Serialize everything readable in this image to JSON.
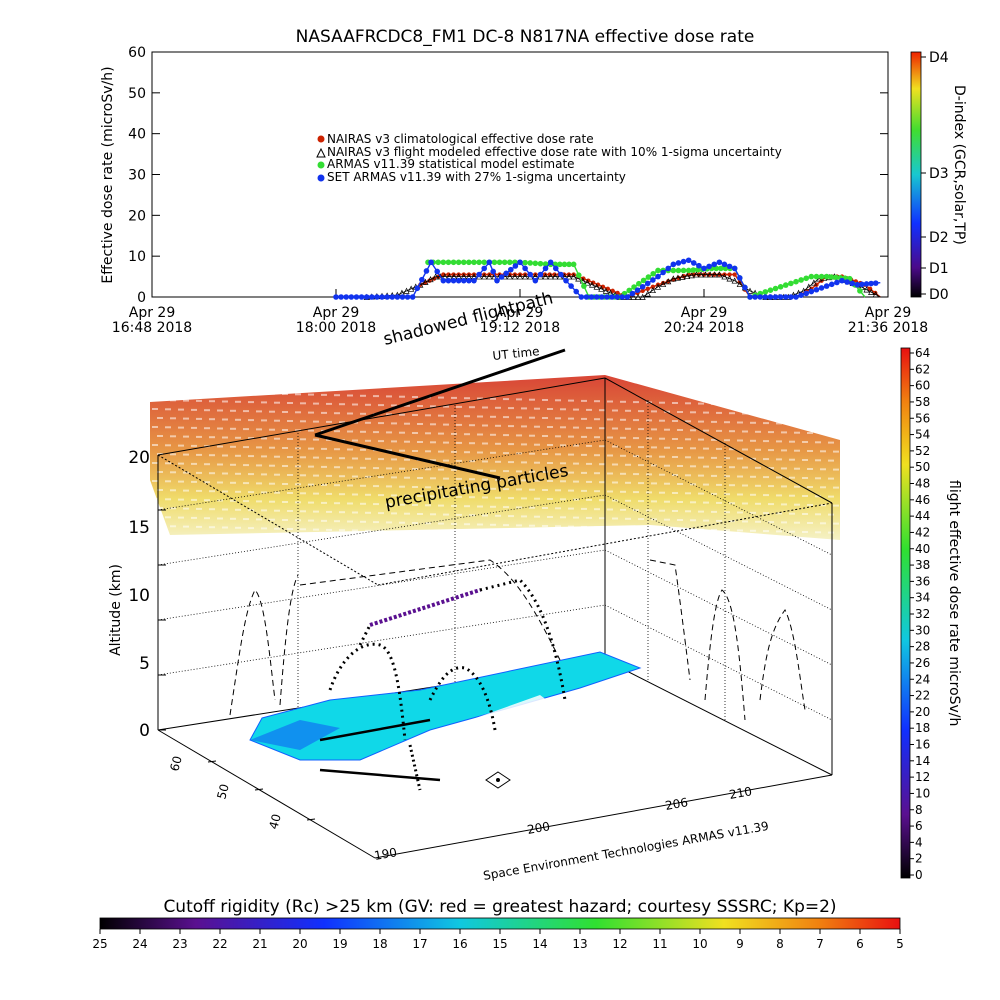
{
  "title": "NASAAFRCDC8_FM1 DC-8    N817NA effective dose rate",
  "colors": {
    "nairas_clim": "#cc2200",
    "nairas_flight": "#000000",
    "armas_stat": "#33dd33",
    "set_armas": "#1133ee"
  },
  "chart_data": [
    {
      "type": "line",
      "ylabel": "Effective dose rate (microSv/h)",
      "ylim": [
        0,
        60
      ],
      "yticks": [
        "0",
        "10",
        "20",
        "30",
        "40",
        "50",
        "60"
      ],
      "xticks": [
        {
          "line1": "Apr 29",
          "line2": "16:48 2018"
        },
        {
          "line1": "Apr 29",
          "line2": "18:00 2018"
        },
        {
          "line1": "Apr 29",
          "line2": "19:12 2018"
        },
        {
          "line1": "Apr 29",
          "line2": "20:24 2018"
        },
        {
          "line1": "Apr 29",
          "line2": "21:36 2018"
        }
      ],
      "xlim_hours": [
        16.8,
        21.6
      ],
      "legend_position": "center",
      "series": [
        {
          "name": "NAIRAS v3 climatological effective dose rate",
          "color_key": "nairas_clim",
          "x_hours": [
            18.55,
            18.7,
            19.0,
            19.3,
            19.55,
            19.9,
            20.1,
            20.3,
            20.5,
            20.6,
            20.7,
            20.8,
            20.9,
            21.0,
            21.1,
            21.2,
            21.3,
            21.45,
            21.55
          ],
          "y": [
            3,
            5.5,
            5.5,
            5.5,
            5.5,
            0,
            3,
            5.5,
            5.5,
            5.5,
            0,
            0,
            0,
            0,
            2,
            5,
            5,
            3,
            0
          ]
        },
        {
          "name": "NAIRAS v3 flight modeled effective dose rate with 10% 1-sigma uncertainty",
          "color_key": "nairas_flight",
          "x_hours": [
            18.2,
            18.4,
            18.55,
            18.65,
            18.8,
            19.0,
            19.2,
            19.4,
            19.55,
            19.7,
            19.85,
            20.0,
            20.1,
            20.2,
            20.35,
            20.5,
            20.6,
            20.7,
            20.8,
            20.95,
            21.05,
            21.15,
            21.25,
            21.4,
            21.55
          ],
          "y": [
            0,
            0.5,
            3,
            5,
            5,
            5,
            5,
            5,
            5,
            2.5,
            0,
            0,
            2.5,
            4.5,
            5.5,
            5.5,
            4,
            1.5,
            0,
            0,
            1.5,
            4.5,
            5,
            3,
            0
          ]
        },
        {
          "name": "ARMAS v11.39 statistical model estimate",
          "color_key": "armas_stat",
          "x_hours": [
            18.6,
            18.8,
            19.0,
            19.2,
            19.4,
            19.55,
            19.65,
            19.85,
            20.1,
            20.3,
            20.45,
            20.6,
            20.7,
            21.1,
            21.2,
            21.35,
            21.45
          ],
          "y": [
            8.5,
            8.5,
            8.5,
            8.5,
            8.0,
            8.0,
            0,
            0,
            6.5,
            6.5,
            7.0,
            7.0,
            0,
            5.0,
            5.0,
            4.5,
            0
          ]
        },
        {
          "name": "SET ARMAS v11.39 with 27% 1-sigma uncertainty",
          "color_key": "set_armas",
          "x_hours": [
            18.0,
            18.5,
            18.62,
            18.7,
            18.9,
            19.0,
            19.05,
            19.2,
            19.3,
            19.4,
            19.5,
            19.6,
            19.9,
            20.1,
            20.2,
            20.3,
            20.4,
            20.5,
            20.6,
            20.7,
            21.0,
            21.3,
            21.4,
            21.55
          ],
          "y": [
            0,
            0,
            8.5,
            4.0,
            4.0,
            8.5,
            4.0,
            8.5,
            4.0,
            8.5,
            4.0,
            0,
            0,
            5.0,
            8.0,
            9.0,
            7.0,
            8.5,
            7.0,
            0,
            0,
            4.0,
            3.0,
            3.5
          ]
        }
      ],
      "right_axis": {
        "label": "D-index (GCR,solar,TP)",
        "ticks": [
          "D0",
          "D1",
          "D2",
          "D3",
          "D4"
        ]
      }
    },
    {
      "type": "scatter",
      "ylabel": "Altitude (km)",
      "zticks": [
        "0",
        "5",
        "10",
        "15",
        "20"
      ],
      "longitude_ticks": [
        "190",
        "200",
        "206",
        "210"
      ],
      "latitude_ticks": [
        "60",
        "50",
        "40"
      ],
      "annotations": [
        "shadowed flightpath",
        "UT time",
        "precipitating particles"
      ],
      "credit": "Space Environment Technologies ARMAS v11.39",
      "colorbar_right": {
        "label": "flight effective dose rate microSv/h",
        "ticks": [
          "0",
          "2",
          "4",
          "6",
          "8",
          "10",
          "12",
          "14",
          "16",
          "18",
          "20",
          "22",
          "24",
          "26",
          "28",
          "30",
          "32",
          "34",
          "36",
          "38",
          "40",
          "42",
          "44",
          "46",
          "48",
          "50",
          "52",
          "54",
          "56",
          "58",
          "60",
          "62",
          "64"
        ]
      },
      "colorbar_bottom": {
        "label": "Cutoff rigidity (Rc) >25 km (GV: red = greatest hazard; courtesy SSSRC; Kp=2)",
        "ticks": [
          "25",
          "24",
          "23",
          "22",
          "21",
          "20",
          "19",
          "18",
          "17",
          "16",
          "15",
          "14",
          "13",
          "12",
          "11",
          "10",
          "9",
          "8",
          "7",
          "6",
          "5"
        ]
      }
    }
  ]
}
